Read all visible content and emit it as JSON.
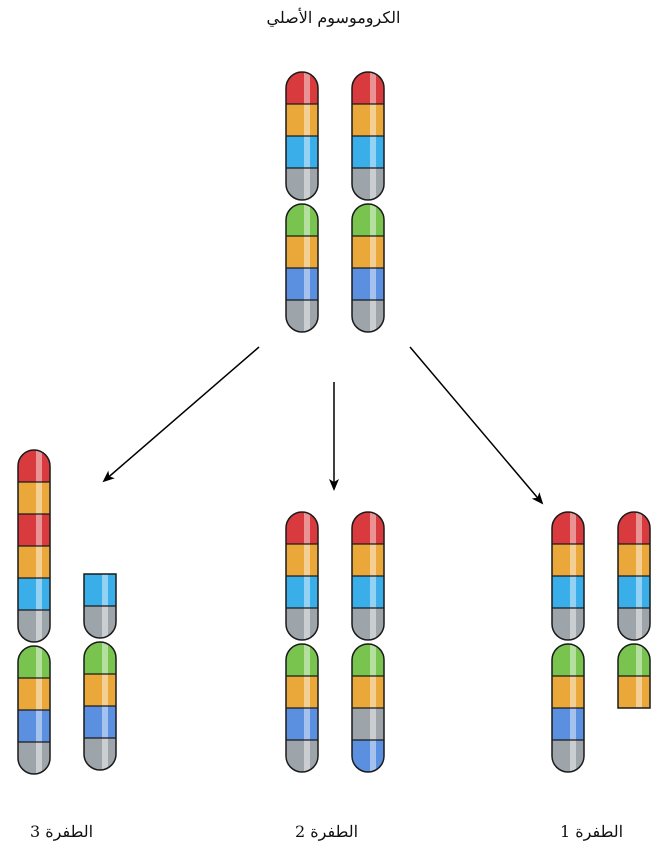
{
  "title": "الكروموسوم الأصلي",
  "labels": {
    "mutation_3": "الطفرة 3",
    "mutation_2": "الطفرة 2",
    "mutation_1": "الطفرة 1"
  },
  "colors": {
    "red": "#d83a3e",
    "orange": "#eba83a",
    "cyan": "#3aaee8",
    "gray": "#9ea5aa",
    "green": "#78c44e",
    "blue": "#5b8fdf",
    "outline": "#1a1a1a",
    "arrow": "#000000"
  },
  "chromosomes": {
    "original": {
      "left_chromatid": [
        [
          "red",
          "orange",
          "cyan",
          "gray"
        ],
        [
          "green",
          "orange",
          "blue",
          "gray"
        ]
      ],
      "right_chromatid": [
        [
          "red",
          "orange",
          "cyan",
          "gray"
        ],
        [
          "green",
          "orange",
          "blue",
          "gray"
        ]
      ]
    },
    "mutation_3": {
      "left_chromatid": [
        [
          "red",
          "orange",
          "red",
          "orange",
          "cyan",
          "gray"
        ],
        [
          "green",
          "orange",
          "blue",
          "gray"
        ]
      ],
      "right_chromatid": [
        [
          "cyan",
          "gray"
        ],
        [
          "green",
          "orange",
          "blue",
          "gray"
        ]
      ]
    },
    "mutation_2": {
      "left_chromatid": [
        [
          "red",
          "orange",
          "cyan",
          "gray"
        ],
        [
          "green",
          "orange",
          "blue",
          "gray"
        ]
      ],
      "right_chromatid": [
        [
          "red",
          "orange",
          "cyan",
          "gray"
        ],
        [
          "green",
          "orange",
          "gray",
          "blue"
        ]
      ]
    },
    "mutation_1": {
      "left_chromatid": [
        [
          "red",
          "orange",
          "cyan",
          "gray"
        ],
        [
          "green",
          "orange",
          "blue",
          "gray"
        ]
      ],
      "right_chromatid": [
        [
          "red",
          "orange",
          "cyan",
          "gray"
        ],
        [
          "green",
          "orange"
        ]
      ]
    }
  }
}
